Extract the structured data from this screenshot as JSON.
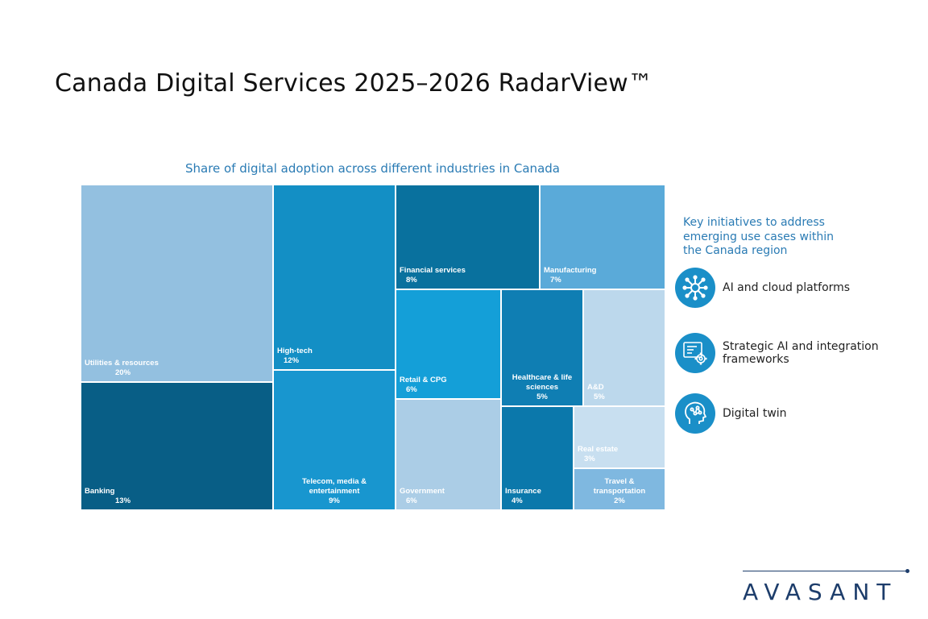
{
  "title": "Canada Digital Services 2025–2026 RadarView™",
  "chart_data": {
    "type": "treemap",
    "title": "Share of digital adoption across different industries in Canada",
    "unit": "%",
    "items": [
      {
        "name": "Utilities & resources",
        "value": 20,
        "label": "20%",
        "color": "#93c0e0"
      },
      {
        "name": "Banking",
        "value": 13,
        "label": "13%",
        "color": "#085e86"
      },
      {
        "name": "High-tech",
        "value": 12,
        "label": "12%",
        "color": "#138fc5"
      },
      {
        "name": "Telecom, media & entertainment",
        "value": 9,
        "label": "9%",
        "color": "#1896cf"
      },
      {
        "name": "Financial services",
        "value": 8,
        "label": "8%",
        "color": "#09719e"
      },
      {
        "name": "Manufacturing",
        "value": 7,
        "label": "7%",
        "color": "#5aaad9"
      },
      {
        "name": "Retail & CPG",
        "value": 6,
        "label": "6%",
        "color": "#149fd8"
      },
      {
        "name": "Government",
        "value": 6,
        "label": "6%",
        "color": "#abcde6"
      },
      {
        "name": "Healthcare & life sciences",
        "value": 5,
        "label": "5%",
        "color": "#0f7eb3"
      },
      {
        "name": "A&D",
        "value": 5,
        "label": "5%",
        "color": "#bcd8ec"
      },
      {
        "name": "Insurance",
        "value": 4,
        "label": "4%",
        "color": "#0b78ab"
      },
      {
        "name": "Real estate",
        "value": 3,
        "label": "3%",
        "color": "#c8dff0"
      },
      {
        "name": "Travel & transportation",
        "value": 2,
        "label": "2%",
        "color": "#7fb8e0"
      }
    ]
  },
  "sidebar": {
    "title": "Key initiatives to address emerging use cases within the Canada region",
    "items": [
      {
        "label": "AI and cloud platforms",
        "icon": "network-hub-icon"
      },
      {
        "label": "Strategic AI and integration frameworks",
        "icon": "code-gear-icon"
      },
      {
        "label": "Digital twin",
        "icon": "brain-head-icon"
      }
    ]
  },
  "logo": "AVASANT",
  "colors": {
    "accent": "#2a7bb4",
    "icon_bg": "#1a8fc8",
    "logo": "#1d3d6b"
  }
}
